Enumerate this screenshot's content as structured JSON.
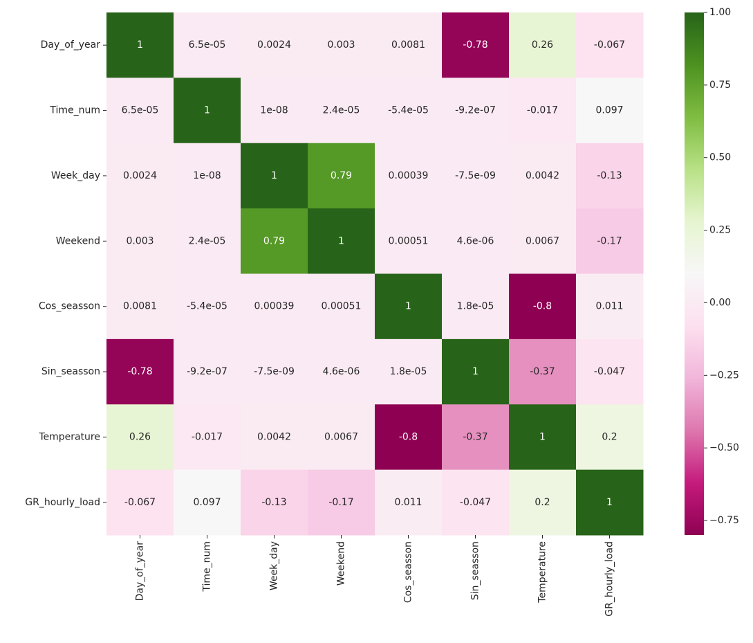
{
  "chart_data": {
    "type": "heatmap",
    "colormap": "PiYG",
    "categories": [
      "Day_of_year",
      "Time_num",
      "Week_day",
      "Weekend",
      "Cos_seasson",
      "Sin_seasson",
      "Temperature",
      "GR_hourly_load"
    ],
    "values": [
      [
        1,
        6.5e-05,
        0.0024,
        0.003,
        0.0081,
        -0.78,
        0.26,
        -0.067
      ],
      [
        6.5e-05,
        1,
        1e-08,
        2.4e-05,
        -5.4e-05,
        -9.2e-07,
        -0.017,
        0.097
      ],
      [
        0.0024,
        1e-08,
        1,
        0.79,
        0.00039,
        -7.5e-09,
        0.0042,
        -0.13
      ],
      [
        0.003,
        2.4e-05,
        0.79,
        1,
        0.00051,
        4.6e-06,
        0.0067,
        -0.17
      ],
      [
        0.0081,
        -5.4e-05,
        0.00039,
        0.00051,
        1,
        1.8e-05,
        -0.8,
        0.011
      ],
      [
        -0.78,
        -9.2e-07,
        -7.5e-09,
        4.6e-06,
        1.8e-05,
        1,
        -0.37,
        -0.047
      ],
      [
        0.26,
        -0.017,
        0.0042,
        0.0067,
        -0.8,
        -0.37,
        1,
        0.2
      ],
      [
        -0.067,
        0.097,
        -0.13,
        -0.17,
        0.011,
        -0.047,
        0.2,
        1
      ]
    ],
    "value_labels": [
      [
        "1",
        "6.5e-05",
        "0.0024",
        "0.003",
        "0.0081",
        "-0.78",
        "0.26",
        "-0.067"
      ],
      [
        "6.5e-05",
        "1",
        "1e-08",
        "2.4e-05",
        "-5.4e-05",
        "-9.2e-07",
        "-0.017",
        "0.097"
      ],
      [
        "0.0024",
        "1e-08",
        "1",
        "0.79",
        "0.00039",
        "-7.5e-09",
        "0.0042",
        "-0.13"
      ],
      [
        "0.003",
        "2.4e-05",
        "0.79",
        "1",
        "0.00051",
        "4.6e-06",
        "0.0067",
        "-0.17"
      ],
      [
        "0.0081",
        "-5.4e-05",
        "0.00039",
        "0.00051",
        "1",
        "1.8e-05",
        "-0.8",
        "0.011"
      ],
      [
        "-0.78",
        "-9.2e-07",
        "-7.5e-09",
        "4.6e-06",
        "1.8e-05",
        "1",
        "-0.37",
        "-0.047"
      ],
      [
        "0.26",
        "-0.017",
        "0.0042",
        "0.0067",
        "-0.8",
        "-0.37",
        "1",
        "0.2"
      ],
      [
        "-0.067",
        "0.097",
        "-0.13",
        "-0.17",
        "0.011",
        "-0.047",
        "0.2",
        "1"
      ]
    ],
    "clim": [
      -0.8,
      1
    ],
    "cticks": [
      {
        "value": 1,
        "label": "1.00"
      },
      {
        "value": 0.75,
        "label": "0.75"
      },
      {
        "value": 0.5,
        "label": "0.50"
      },
      {
        "value": 0.25,
        "label": "0.25"
      },
      {
        "value": 0,
        "label": "0.00"
      },
      {
        "value": -0.25,
        "label": "−0.25"
      },
      {
        "value": -0.5,
        "label": "−0.50"
      },
      {
        "value": -0.75,
        "label": "−0.75"
      }
    ]
  }
}
